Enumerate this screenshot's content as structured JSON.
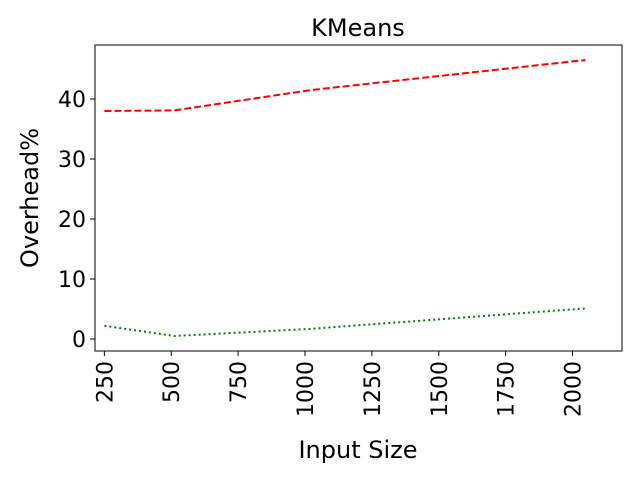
{
  "chart_data": {
    "type": "line",
    "title": "KMeans",
    "xlabel": "Input Size",
    "ylabel": "Overhead%",
    "xlim": [
      215,
      2185
    ],
    "ylim": [
      -2,
      49
    ],
    "xticks": [
      250,
      500,
      750,
      1000,
      1250,
      1500,
      1750,
      2000
    ],
    "yticks": [
      0,
      10,
      20,
      30,
      40
    ],
    "grid": false,
    "series": [
      {
        "name": "red-dashed",
        "color": "#ff0000",
        "style": "dashed",
        "x": [
          250,
          512,
          1024,
          2048
        ],
        "y": [
          38.0,
          38.1,
          41.5,
          46.5
        ]
      },
      {
        "name": "green-dotted",
        "color": "#008000",
        "style": "dotted",
        "x": [
          250,
          512,
          1024,
          2048
        ],
        "y": [
          2.2,
          0.5,
          1.7,
          5.1
        ]
      }
    ]
  }
}
